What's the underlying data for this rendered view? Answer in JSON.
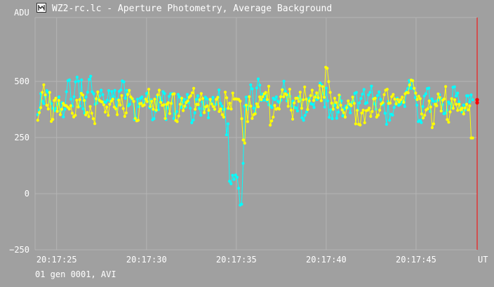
{
  "window": {
    "title": "WZ2-rc.lc - Aperture Photometry, Average Background",
    "icon": "chart-app-icon"
  },
  "footer": {
    "status": "01 gen 0001, AVI"
  },
  "colors": {
    "background": "#a0a0a0",
    "grid": "#b4b4b4",
    "text": "#ffffff",
    "series_cyan": "#00ffff",
    "series_yellow": "#ffff00",
    "cursor": "#ff0000"
  },
  "chart_data": {
    "type": "line",
    "ylabel": "ADU",
    "xlabel": "UT",
    "ylim": [
      -250,
      700
    ],
    "yticks": [
      500,
      250,
      0,
      -250
    ],
    "xlim_seconds": [
      23.8,
      48.4
    ],
    "xticks": [
      {
        "label": "20:17:25",
        "t": 25
      },
      {
        "label": "20:17:30",
        "t": 30
      },
      {
        "label": "20:17:35",
        "t": 35
      },
      {
        "label": "20:17:40",
        "t": 40
      },
      {
        "label": "20:17:45",
        "t": 45
      }
    ],
    "grid": true,
    "cursor": {
      "t": 48.4,
      "markers": [
        405,
        418
      ]
    },
    "series": [
      {
        "color": "cyan",
        "values": [
          352,
          372,
          446,
          412,
          401,
          432,
          459,
          452,
          411,
          401,
          380,
          370,
          380,
          398,
          431,
          367,
          405,
          342,
          376,
          454,
          503,
          507,
          421,
          390,
          432,
          498,
          519,
          501,
          390,
          507,
          378,
          358,
          430,
          452,
          509,
          523,
          454,
          445,
          398,
          403,
          420,
          435,
          461,
          441,
          408,
          407,
          416,
          459,
          412,
          455,
          432,
          460,
          376,
          421,
          456,
          462,
          502,
          498,
          425,
          460,
          391,
          398,
          423,
          421,
          330,
          338,
          421,
          387,
          425,
          431,
          396,
          418,
          446,
          449,
          383,
          418,
          329,
          334,
          367,
          434,
          374,
          428,
          413,
          454,
          446,
          330,
          382,
          433,
          445,
          446,
          335,
          356,
          366,
          442,
          430,
          384,
          407,
          420,
          385,
          442,
          406,
          380,
          316,
          328,
          360,
          420,
          436,
          379,
          349,
          408,
          377,
          430,
          422,
          338,
          418,
          400,
          429,
          375,
          398,
          426,
          462,
          402,
          390,
          375,
          377,
          262,
          311,
          55,
          44,
          82,
          63,
          83,
          73,
          24,
          -51,
          -47,
          135,
          389,
          430,
          376,
          390,
          485,
          467,
          381,
          361,
          471,
          511,
          483,
          415,
          444,
          417,
          438,
          413,
          396,
          390,
          384,
          425,
          419,
          431,
          411,
          406,
          416,
          465,
          501,
          455,
          413,
          443,
          433,
          390,
          412,
          384,
          382,
          368,
          432,
          420,
          338,
          327,
          349,
          364,
          420,
          426,
          400,
          398,
          384,
          437,
          419,
          426,
          492,
          483,
          446,
          386,
          470,
          413,
          340,
          374,
          334,
          392,
          400,
          336,
          363,
          433,
          413,
          346,
          379,
          390,
          380,
          399,
          360,
          406,
          414,
          447,
          451,
          373,
          404,
          424,
          443,
          464,
          401,
          405,
          440,
          451,
          479,
          424,
          400,
          376,
          437,
          453,
          420,
          396,
          401,
          358,
          309,
          411,
          327,
          354,
          350,
          384,
          398,
          426,
          393,
          398,
          406,
          412,
          388,
          455,
          468,
          504,
          469,
          505,
          467,
          428,
          394,
          321,
          326,
          317,
          388,
          435,
          445,
          468,
          470,
          366,
          422,
          412,
          396,
          412,
          417,
          441,
          423,
          397,
          356,
          359,
          372,
          408,
          401,
          382,
          474,
          476,
          435,
          448,
          409,
          380,
          364,
          395,
          373,
          436,
          436,
          409,
          440,
          418
        ]
      },
      {
        "color": "yellow",
        "values": [
          327,
          361,
          383,
          451,
          485,
          440,
          394,
          377,
          451,
          322,
          331,
          415,
          425,
          367,
          415,
          352,
          376,
          402,
          393,
          392,
          385,
          377,
          392,
          358,
          342,
          349,
          416,
          386,
          419,
          447,
          439,
          415,
          351,
          362,
          343,
          388,
          358,
          334,
          312,
          423,
          453,
          416,
          411,
          408,
          396,
          363,
          386,
          349,
          398,
          412,
          421,
          386,
          378,
          352,
          417,
          394,
          437,
          379,
          344,
          360,
          442,
          460,
          431,
          423,
          411,
          335,
          324,
          327,
          401,
          402,
          391,
          395,
          421,
          410,
          465,
          388,
          412,
          376,
          421,
          372,
          440,
          461,
          407,
          393,
          396,
          335,
          398,
          405,
          357,
          402,
          443,
          445,
          326,
          321,
          346,
          398,
          425,
          370,
          390,
          406,
          413,
          429,
          436,
          449,
          469,
          376,
          398,
          397,
          418,
          446,
          424,
          361,
          387,
          391,
          371,
          420,
          399,
          388,
          376,
          420,
          429,
          366,
          377,
          352,
          341,
          452,
          427,
          380,
          403,
          377,
          448,
          421,
          422,
          421,
          420,
          412,
          334,
          239,
          225,
          394,
          321,
          432,
          390,
          335,
          352,
          356,
          400,
          387,
          431,
          419,
          432,
          444,
          451,
          419,
          478,
          305,
          324,
          341,
          393,
          376,
          380,
          377,
          432,
          463,
          432,
          445,
          440,
          389,
          465,
          372,
          332,
          404,
          425,
          425,
          411,
          452,
          380,
          418,
          475,
          421,
          375,
          413,
          437,
          461,
          415,
          430,
          449,
          427,
          481,
          414,
          477,
          429,
          563,
          558,
          499,
          451,
          403,
          376,
          425,
          406,
          384,
          439,
          394,
          373,
          361,
          341,
          383,
          413,
          398,
          392,
          430,
          402,
          311,
          371,
          309,
          306,
          359,
          372,
          316,
          370,
          372,
          381,
          344,
          366,
          422,
          425,
          341,
          350,
          372,
          399,
          405,
          441,
          461,
          465,
          402,
          403,
          432,
          442,
          421,
          400,
          420,
          408,
          418,
          430,
          407,
          445,
          451,
          449,
          484,
          506,
          503,
          469,
          448,
          419,
          434,
          423,
          355,
          337,
          349,
          373,
          378,
          413,
          386,
          294,
          311,
          398,
          392,
          444,
          428,
          368,
          416,
          422,
          477,
          330,
          318,
          364,
          423,
          380,
          418,
          398,
          371,
          398,
          373,
          381,
          355,
          382,
          398,
          373,
          391,
          248,
          248
        ]
      }
    ]
  }
}
